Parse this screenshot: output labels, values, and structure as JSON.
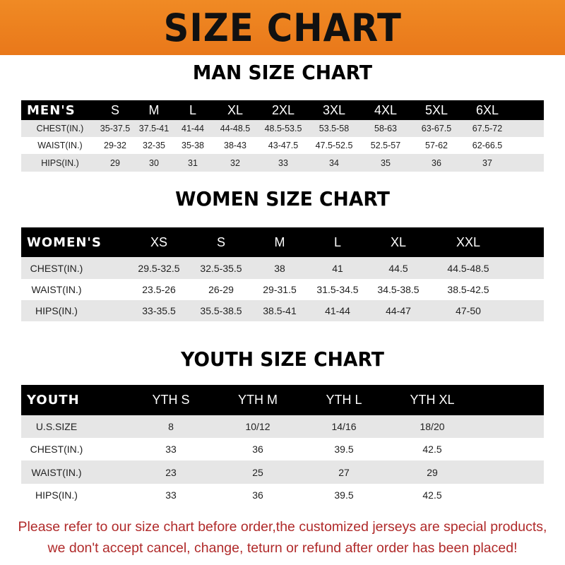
{
  "title": "SIZE CHART",
  "colors": {
    "banner": "#ee8220",
    "header_row": "#000000",
    "stripe": "#e6e6e6",
    "notice": "#b02a2a"
  },
  "men": {
    "title": "MAN SIZE CHART",
    "header": [
      "MEN'S",
      "S",
      "M",
      "L",
      "XL",
      "2XL",
      "3XL",
      "4XL",
      "5XL",
      "6XL"
    ],
    "rows": [
      [
        "CHEST(IN.)",
        "35-37.5",
        "37.5-41",
        "41-44",
        "44-48.5",
        "48.5-53.5",
        "53.5-58",
        "58-63",
        "63-67.5",
        "67.5-72"
      ],
      [
        "WAIST(IN.)",
        "29-32",
        "32-35",
        "35-38",
        "38-43",
        "43-47.5",
        "47.5-52.5",
        "52.5-57",
        "57-62",
        "62-66.5"
      ],
      [
        "HIPS(IN.)",
        "29",
        "30",
        "31",
        "32",
        "33",
        "34",
        "35",
        "36",
        "37"
      ]
    ]
  },
  "women": {
    "title": "WOMEN SIZE CHART",
    "header": [
      "WOMEN'S",
      "XS",
      "S",
      "M",
      "L",
      "XL",
      "XXL"
    ],
    "rows": [
      [
        "CHEST(IN.)",
        "29.5-32.5",
        "32.5-35.5",
        "38",
        "41",
        "44.5",
        "44.5-48.5"
      ],
      [
        "WAIST(IN.)",
        "23.5-26",
        "26-29",
        "29-31.5",
        "31.5-34.5",
        "34.5-38.5",
        "38.5-42.5"
      ],
      [
        "HIPS(IN.)",
        "33-35.5",
        "35.5-38.5",
        "38.5-41",
        "41-44",
        "44-47",
        "47-50"
      ]
    ]
  },
  "youth": {
    "title": "YOUTH SIZE CHART",
    "header": [
      "YOUTH",
      "YTH S",
      "YTH M",
      "YTH L",
      "YTH XL"
    ],
    "rows": [
      [
        "U.S.SIZE",
        "8",
        "10/12",
        "14/16",
        "18/20"
      ],
      [
        "CHEST(IN.)",
        "33",
        "36",
        "39.5",
        "42.5"
      ],
      [
        "WAIST(IN.)",
        "23",
        "25",
        "27",
        "29"
      ],
      [
        "HIPS(IN.)",
        "33",
        "36",
        "39.5",
        "42.5"
      ]
    ]
  },
  "notice": {
    "line1": "Please refer to our size chart before order,the customized jerseys are special products,",
    "line2": "we don't accept cancel, change, teturn or refund after order has been placed!"
  }
}
